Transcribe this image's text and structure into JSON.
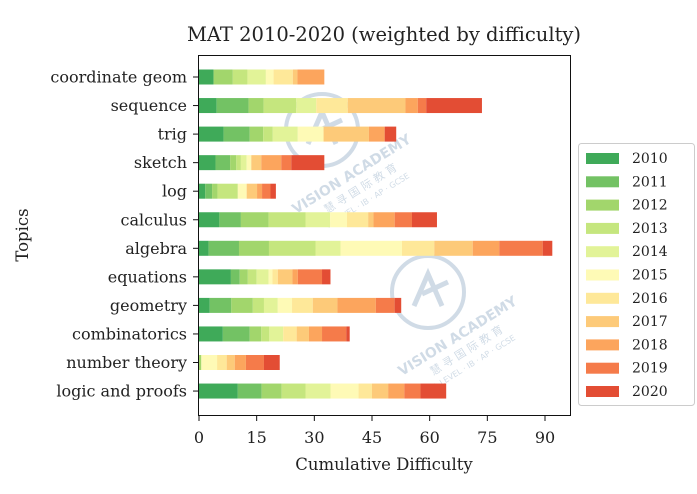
{
  "chart_data": {
    "type": "bar",
    "orientation": "horizontal",
    "stacked": true,
    "title": "MAT 2010-2020 (weighted by difficulty)",
    "xlabel": "Cumulative Difficulty",
    "ylabel": "Topics",
    "xlim": [
      0,
      97
    ],
    "xticks": [
      0,
      15,
      30,
      45,
      60,
      75,
      90
    ],
    "grid": false,
    "legend_position": "right",
    "categories": [
      "coordinate geom",
      "sequence",
      "trig",
      "sketch",
      "log",
      "calculus",
      "algebra",
      "equations",
      "geometry",
      "combinatorics",
      "number theory",
      "logic and proofs"
    ],
    "series": [
      {
        "name": "2010",
        "color": "#3faa59",
        "values": [
          3.8,
          4.6,
          6.4,
          4.3,
          1.6,
          5.3,
          2.5,
          8.3,
          2.8,
          6.2,
          0.0,
          10.1
        ]
      },
      {
        "name": "2011",
        "color": "#73c264",
        "values": [
          0.0,
          8.3,
          6.8,
          3.8,
          1.8,
          5.6,
          7.9,
          2.3,
          5.6,
          7.0,
          0.0,
          6.2
        ]
      },
      {
        "name": "2012",
        "color": "#a2d66c",
        "values": [
          5.0,
          3.9,
          3.5,
          1.6,
          1.4,
          7.2,
          7.8,
          2.1,
          5.6,
          3.0,
          0.6,
          5.2
        ]
      },
      {
        "name": "2013",
        "color": "#c5e67e",
        "values": [
          3.8,
          8.5,
          2.5,
          1.2,
          5.3,
          9.6,
          12.1,
          2.3,
          2.9,
          2.1,
          0.0,
          6.2
        ]
      },
      {
        "name": "2014",
        "color": "#e2f398",
        "values": [
          4.8,
          5.2,
          6.5,
          1.5,
          0.0,
          6.4,
          6.5,
          3.1,
          3.6,
          3.6,
          0.0,
          6.5
        ]
      },
      {
        "name": "2015",
        "color": "#fefab6",
        "values": [
          2.0,
          0.0,
          6.7,
          1.2,
          2.3,
          4.4,
          16.0,
          1.0,
          3.7,
          0.0,
          4.1,
          7.3
        ]
      },
      {
        "name": "2016",
        "color": "#fee899",
        "values": [
          5.0,
          8.2,
          0.0,
          0.0,
          0.0,
          5.5,
          8.4,
          1.4,
          5.4,
          3.5,
          2.5,
          3.5
        ]
      },
      {
        "name": "2017",
        "color": "#fdca79",
        "values": [
          1.2,
          15.0,
          11.8,
          2.6,
          2.7,
          1.4,
          10.0,
          3.8,
          6.4,
          3.2,
          2.1,
          4.2
        ]
      },
      {
        "name": "2018",
        "color": "#fca55d",
        "values": [
          7.0,
          3.2,
          4.1,
          5.2,
          1.3,
          5.5,
          6.9,
          1.4,
          10.0,
          3.4,
          2.9,
          4.2
        ]
      },
      {
        "name": "2019",
        "color": "#f57b4a",
        "values": [
          0.0,
          2.2,
          0.0,
          2.6,
          2.2,
          4.5,
          11.3,
          6.3,
          4.9,
          6.3,
          4.7,
          4.2
        ]
      },
      {
        "name": "2020",
        "color": "#e34d34",
        "values": [
          0.0,
          14.5,
          3.0,
          8.6,
          1.4,
          6.5,
          2.5,
          2.2,
          1.7,
          0.9,
          4.1,
          6.7
        ]
      }
    ],
    "watermark": {
      "line1": "VISION ACADEMY",
      "line2": "慧 寻 国 际 教 育",
      "line3": "A-LEVEL · IB · AP · GCSE"
    }
  }
}
